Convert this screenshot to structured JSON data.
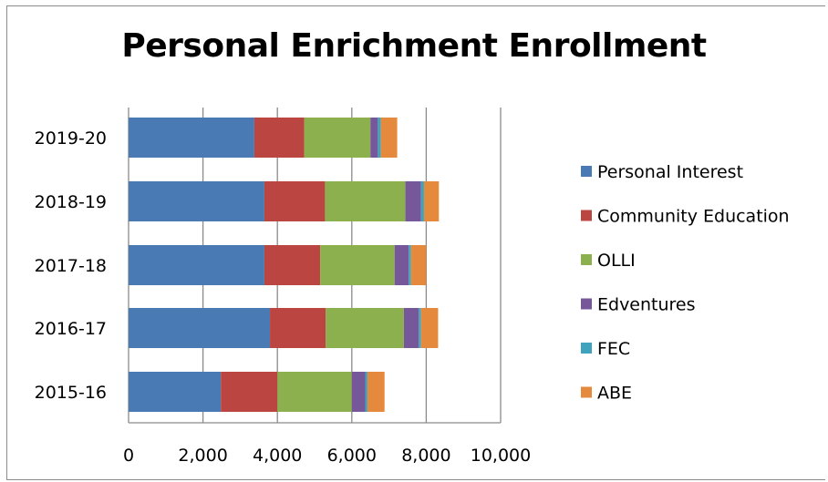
{
  "chart_data": {
    "type": "bar",
    "orientation": "horizontal",
    "stacked": true,
    "title": "Personal Enrichment Enrollment",
    "categories": [
      "2015-16",
      "2016-17",
      "2017-18",
      "2018-19",
      "2019-20"
    ],
    "xlim": [
      0,
      10000
    ],
    "xticks": [
      "0",
      "2,000",
      "4,000",
      "6,000",
      "8,000",
      "10,000"
    ],
    "xtick_values": [
      0,
      2000,
      4000,
      6000,
      8000,
      10000
    ],
    "grid": "vertical",
    "legend_position": "right",
    "series": [
      {
        "name": "Personal Interest",
        "color": "#4a7ab4",
        "values": [
          2480,
          3800,
          3650,
          3650,
          3380
        ]
      },
      {
        "name": "Community Education",
        "color": "#bb4641",
        "values": [
          1520,
          1500,
          1500,
          1630,
          1340
        ]
      },
      {
        "name": "OLLI",
        "color": "#8cb04e",
        "values": [
          2000,
          2100,
          2000,
          2160,
          1780
        ]
      },
      {
        "name": "Edventures",
        "color": "#76579a",
        "values": [
          360,
          400,
          380,
          420,
          200
        ]
      },
      {
        "name": "FEC",
        "color": "#3fa3bd",
        "values": [
          60,
          60,
          60,
          80,
          80
        ]
      },
      {
        "name": "ABE",
        "color": "#e58a3c",
        "values": [
          460,
          460,
          410,
          400,
          440
        ]
      }
    ]
  }
}
